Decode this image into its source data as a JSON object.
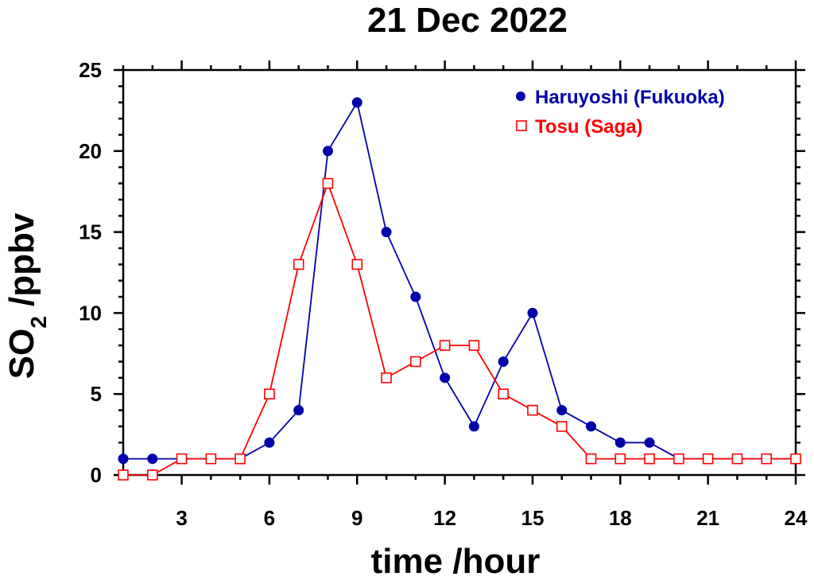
{
  "chart_data": {
    "type": "line",
    "title": "21 Dec 2022",
    "xlabel": "time /hour",
    "ylabel_main": "SO",
    "ylabel_subscript": "2",
    "ylabel_suffix": " /ppbv",
    "xlim": [
      1,
      24
    ],
    "ylim": [
      0,
      25
    ],
    "xticks": [
      3,
      6,
      9,
      12,
      15,
      18,
      21,
      24
    ],
    "yticks": [
      0,
      5,
      10,
      15,
      20,
      25
    ],
    "grid": false,
    "legend_position": "top-right",
    "series": [
      {
        "name": "Haruyoshi (Fukuoka)",
        "color": "#0000aa",
        "marker": "filled-circle",
        "x": [
          1,
          2,
          3,
          4,
          5,
          6,
          7,
          8,
          9,
          10,
          11,
          12,
          13,
          14,
          15,
          16,
          17,
          18,
          19,
          20,
          21,
          22,
          23,
          24
        ],
        "y": [
          1,
          1,
          1,
          1,
          1,
          2,
          4,
          20,
          23,
          15,
          11,
          6,
          3,
          7,
          10,
          4,
          3,
          2,
          2,
          1,
          1,
          1,
          1,
          1
        ]
      },
      {
        "name": "Tosu (Saga)",
        "color": "#ff0000",
        "marker": "open-square",
        "x": [
          1,
          2,
          3,
          4,
          5,
          6,
          7,
          8,
          9,
          10,
          11,
          12,
          13,
          14,
          15,
          16,
          17,
          18,
          19,
          20,
          21,
          22,
          23,
          24
        ],
        "y": [
          0,
          0,
          1,
          1,
          1,
          5,
          13,
          18,
          13,
          6,
          7,
          8,
          8,
          5,
          4,
          3,
          1,
          1,
          1,
          1,
          1,
          1,
          1,
          1
        ]
      }
    ]
  }
}
